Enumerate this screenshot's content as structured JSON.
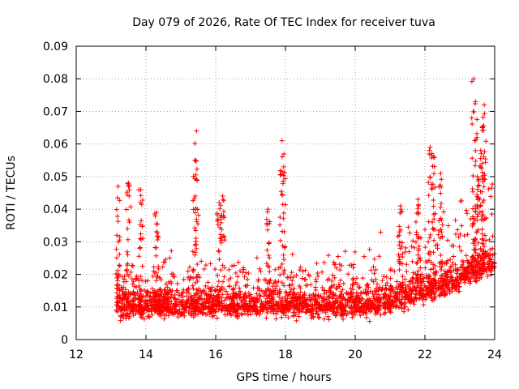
{
  "chart_data": {
    "type": "scatter",
    "title": "Day 079 of 2026, Rate Of TEC Index for receiver tuva",
    "xlabel": "GPS time / hours",
    "ylabel": "ROTI / TECUs",
    "xlim": [
      12,
      24
    ],
    "ylim": [
      0,
      0.09
    ],
    "x_ticks": [
      12,
      14,
      16,
      18,
      20,
      22,
      24
    ],
    "x_tick_labels": [
      "12",
      "14",
      "16",
      "18",
      "20",
      "22",
      "24"
    ],
    "y_ticks": [
      0,
      0.01,
      0.02,
      0.03,
      0.04,
      0.05,
      0.06,
      0.07,
      0.08,
      0.09
    ],
    "y_tick_labels": [
      "0",
      "0.01",
      "0.02",
      "0.03",
      "0.04",
      "0.05",
      "0.06",
      "0.07",
      "0.08",
      "0.09"
    ],
    "grid": true,
    "marker": "+",
    "color": "#ff0000",
    "data_start_hour": 13.15,
    "data_end_hour": 24.0,
    "peaks": [
      {
        "x": 13.2,
        "y": 0.047
      },
      {
        "x": 13.5,
        "y": 0.048
      },
      {
        "x": 13.85,
        "y": 0.046
      },
      {
        "x": 14.3,
        "y": 0.039
      },
      {
        "x": 15.4,
        "y": 0.055
      },
      {
        "x": 15.45,
        "y": 0.064
      },
      {
        "x": 16.1,
        "y": 0.042
      },
      {
        "x": 16.2,
        "y": 0.044
      },
      {
        "x": 17.5,
        "y": 0.04
      },
      {
        "x": 17.9,
        "y": 0.061
      },
      {
        "x": 17.95,
        "y": 0.053
      },
      {
        "x": 21.3,
        "y": 0.041
      },
      {
        "x": 21.8,
        "y": 0.043
      },
      {
        "x": 22.15,
        "y": 0.059
      },
      {
        "x": 22.25,
        "y": 0.056
      },
      {
        "x": 22.45,
        "y": 0.051
      },
      {
        "x": 23.4,
        "y": 0.08
      },
      {
        "x": 23.45,
        "y": 0.073
      },
      {
        "x": 23.7,
        "y": 0.072
      },
      {
        "x": 23.65,
        "y": 0.065
      },
      {
        "x": 23.6,
        "y": 0.058
      },
      {
        "x": 23.5,
        "y": 0.05
      }
    ]
  }
}
